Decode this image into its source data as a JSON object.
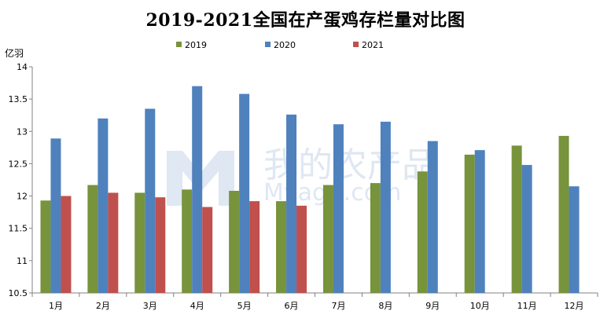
{
  "chart_data": {
    "type": "bar",
    "title": "2019-2021全国在产蛋鸡存栏量对比图",
    "ylabel": "亿羽",
    "xlabel": "",
    "ylim": [
      10.5,
      14
    ],
    "yticks": [
      10.5,
      11,
      11.5,
      12,
      12.5,
      13,
      13.5,
      14
    ],
    "grid": false,
    "legend_position": "top-center",
    "categories": [
      "1月",
      "2月",
      "3月",
      "4月",
      "5月",
      "6月",
      "7月",
      "8月",
      "9月",
      "10月",
      "11月",
      "12月"
    ],
    "series": [
      {
        "name": "2019",
        "color": "#77933C",
        "values": [
          11.93,
          12.17,
          12.05,
          12.1,
          12.08,
          11.92,
          12.17,
          12.2,
          12.38,
          12.64,
          12.78,
          12.93
        ]
      },
      {
        "name": "2020",
        "color": "#4F81BD",
        "values": [
          12.89,
          13.2,
          13.35,
          13.7,
          13.58,
          13.26,
          13.11,
          13.15,
          12.85,
          12.71,
          12.48,
          12.15
        ]
      },
      {
        "name": "2021",
        "color": "#C0504D",
        "values": [
          12.0,
          12.05,
          11.98,
          11.83,
          11.92,
          11.85,
          null,
          null,
          null,
          null,
          null,
          null
        ]
      }
    ]
  },
  "watermark": {
    "text_cn": "我的农产品",
    "text_en": "Myagri.com"
  }
}
